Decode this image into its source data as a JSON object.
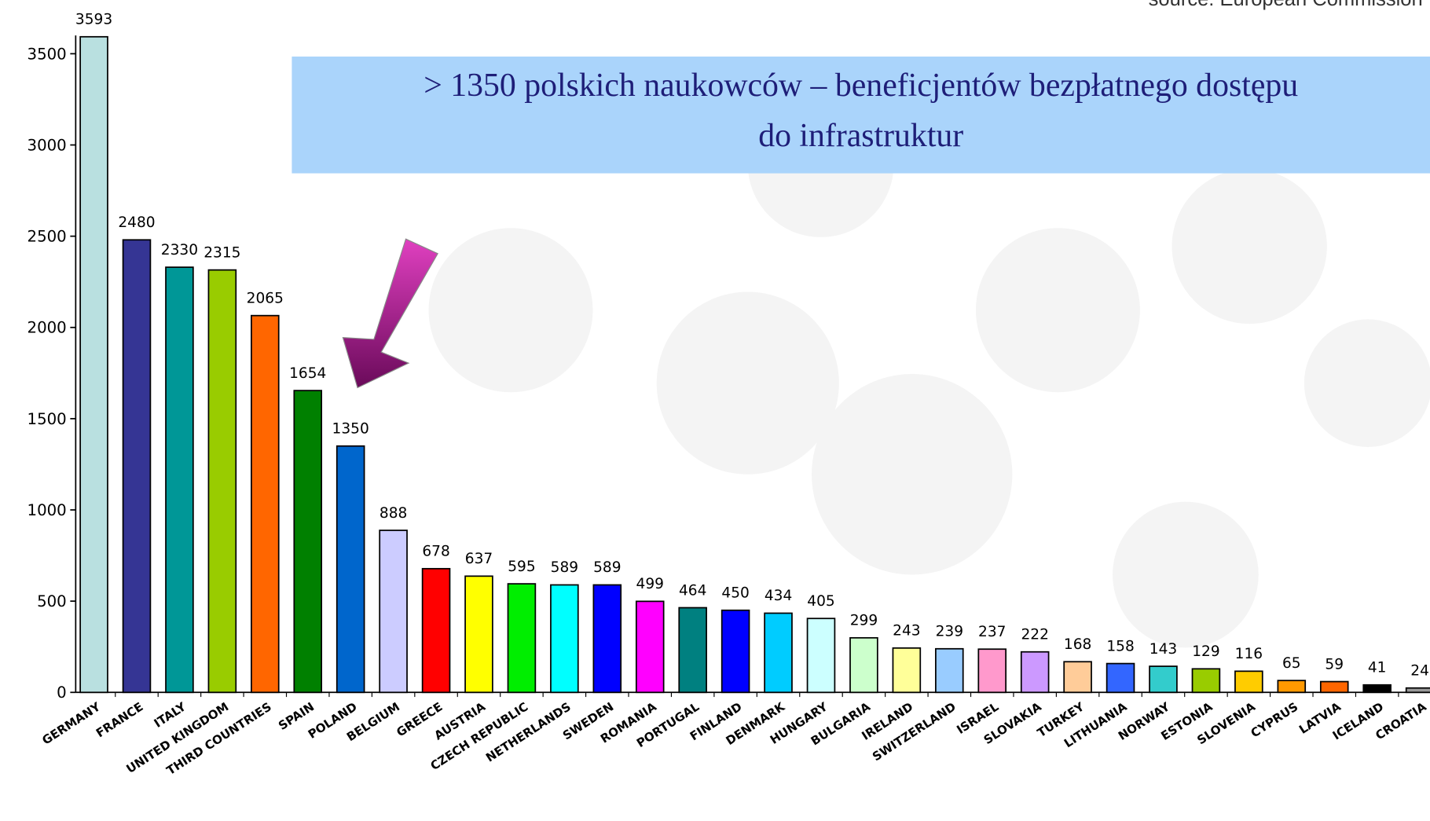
{
  "chart_data": {
    "type": "bar",
    "source": "source: European Commission",
    "annotation": [
      "> 1350 polskich naukowców – beneficjentów bezpłatnego dostępu",
      "do infrastruktur"
    ],
    "categories": [
      "GERMANY",
      "FRANCE",
      "ITALY",
      "UNITED KINGDOM",
      "THIRD COUNTRIES",
      "SPAIN",
      "POLAND",
      "BELGIUM",
      "GREECE",
      "AUSTRIA",
      "CZECH REPUBLIC",
      "NETHERLANDS",
      "SWEDEN",
      "ROMANIA",
      "PORTUGAL",
      "FINLAND",
      "DENMARK",
      "HUNGARY",
      "BULGARIA",
      "IRELAND",
      "SWITZERLAND",
      "ISRAEL",
      "SLOVAKIA",
      "TURKEY",
      "LITHUANIA",
      "NORWAY",
      "ESTONIA",
      "SLOVENIA",
      "CYPRUS",
      "LATVIA",
      "ICELAND",
      "CROATIA"
    ],
    "values": [
      3593,
      2480,
      2330,
      2315,
      2065,
      1654,
      1350,
      888,
      678,
      637,
      595,
      589,
      589,
      499,
      464,
      450,
      434,
      405,
      299,
      243,
      239,
      237,
      222,
      168,
      158,
      143,
      129,
      116,
      65,
      59,
      41,
      24
    ],
    "colors": [
      "#b9e0e0",
      "#353594",
      "#009797",
      "#99cc00",
      "#ff6600",
      "#008000",
      "#0066cc",
      "#ccccff",
      "#ff0000",
      "#ffff00",
      "#00ee00",
      "#00ffff",
      "#0000ff",
      "#ff00ff",
      "#008080",
      "#0000ff",
      "#00ccff",
      "#ccffff",
      "#ccffcc",
      "#ffff99",
      "#99ccff",
      "#ff99cc",
      "#cc99ff",
      "#ffcc99",
      "#3366ff",
      "#33cccc",
      "#99cc00",
      "#ffcc00",
      "#ff9900",
      "#ff6600",
      "#000000",
      "#999999"
    ],
    "ylim": [
      0,
      3600
    ],
    "yticks": [
      0,
      500,
      1000,
      1500,
      2000,
      2500,
      3000,
      3500
    ]
  }
}
